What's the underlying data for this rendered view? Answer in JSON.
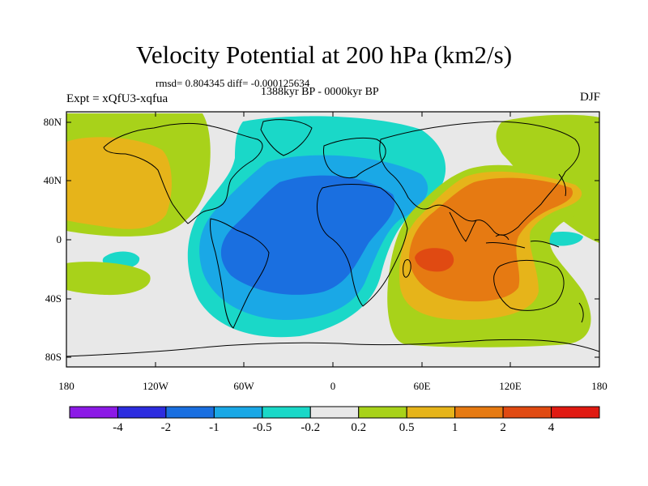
{
  "header": {
    "title": "Velocity Potential at 200 hPa (km2/s)",
    "stats": "rmsd= 0.804345 diff= -0.000125634",
    "period": "1388kyr BP - 0000kyr BP",
    "experiment": "Expt = xQfU3-xqfua",
    "season": "DJF"
  },
  "map": {
    "lat_labels": [
      "80N",
      "40N",
      "0",
      "40S",
      "80S"
    ],
    "lon_labels": [
      "180",
      "120W",
      "60W",
      "0",
      "60E",
      "120E",
      "180"
    ]
  },
  "colorbar": {
    "labels": [
      "-4",
      "-2",
      "-1",
      "-0.5",
      "-0.2",
      "0.2",
      "0.5",
      "1",
      "2",
      "4"
    ],
    "colors": [
      "#8c1ae6",
      "#2d2ddf",
      "#1a6fe0",
      "#1aa8e6",
      "#1ad8c8",
      "#e8e8e8",
      "#a8d21a",
      "#e6b41a",
      "#e67a12",
      "#e04a12",
      "#e01a12"
    ]
  },
  "colors": {
    "land_outline": "#000000",
    "neutral": "#e8e8e8"
  }
}
